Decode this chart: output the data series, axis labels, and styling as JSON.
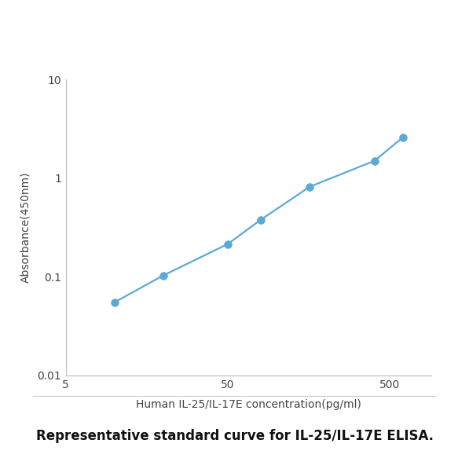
{
  "x_data": [
    10,
    20,
    50,
    80,
    160,
    400,
    600
  ],
  "y_data": [
    0.055,
    0.103,
    0.215,
    0.38,
    0.82,
    1.5,
    2.6
  ],
  "line_color": "#5BAAD4",
  "marker_color": "#5BAAD4",
  "marker_size": 7,
  "line_width": 1.6,
  "xlabel": "Human IL-25/IL-17E concentration(pg/ml)",
  "ylabel": "Absorbance(450nm)",
  "caption": "Representative standard curve for IL-25/IL-17E ELISA.",
  "xlim": [
    5,
    900
  ],
  "ylim": [
    0.01,
    10
  ],
  "x_ticks": [
    5,
    50,
    500
  ],
  "x_tick_labels": [
    "5",
    "50",
    "500"
  ],
  "y_ticks": [
    0.01,
    0.1,
    1,
    10
  ],
  "y_tick_labels": [
    "0.01",
    "0.1",
    "1",
    "10"
  ],
  "xlabel_fontsize": 10,
  "ylabel_fontsize": 10,
  "tick_fontsize": 10,
  "caption_fontsize": 12,
  "background_color": "#ffffff",
  "plot_bg_color": "#ffffff",
  "spine_color": "#bbbbbb"
}
